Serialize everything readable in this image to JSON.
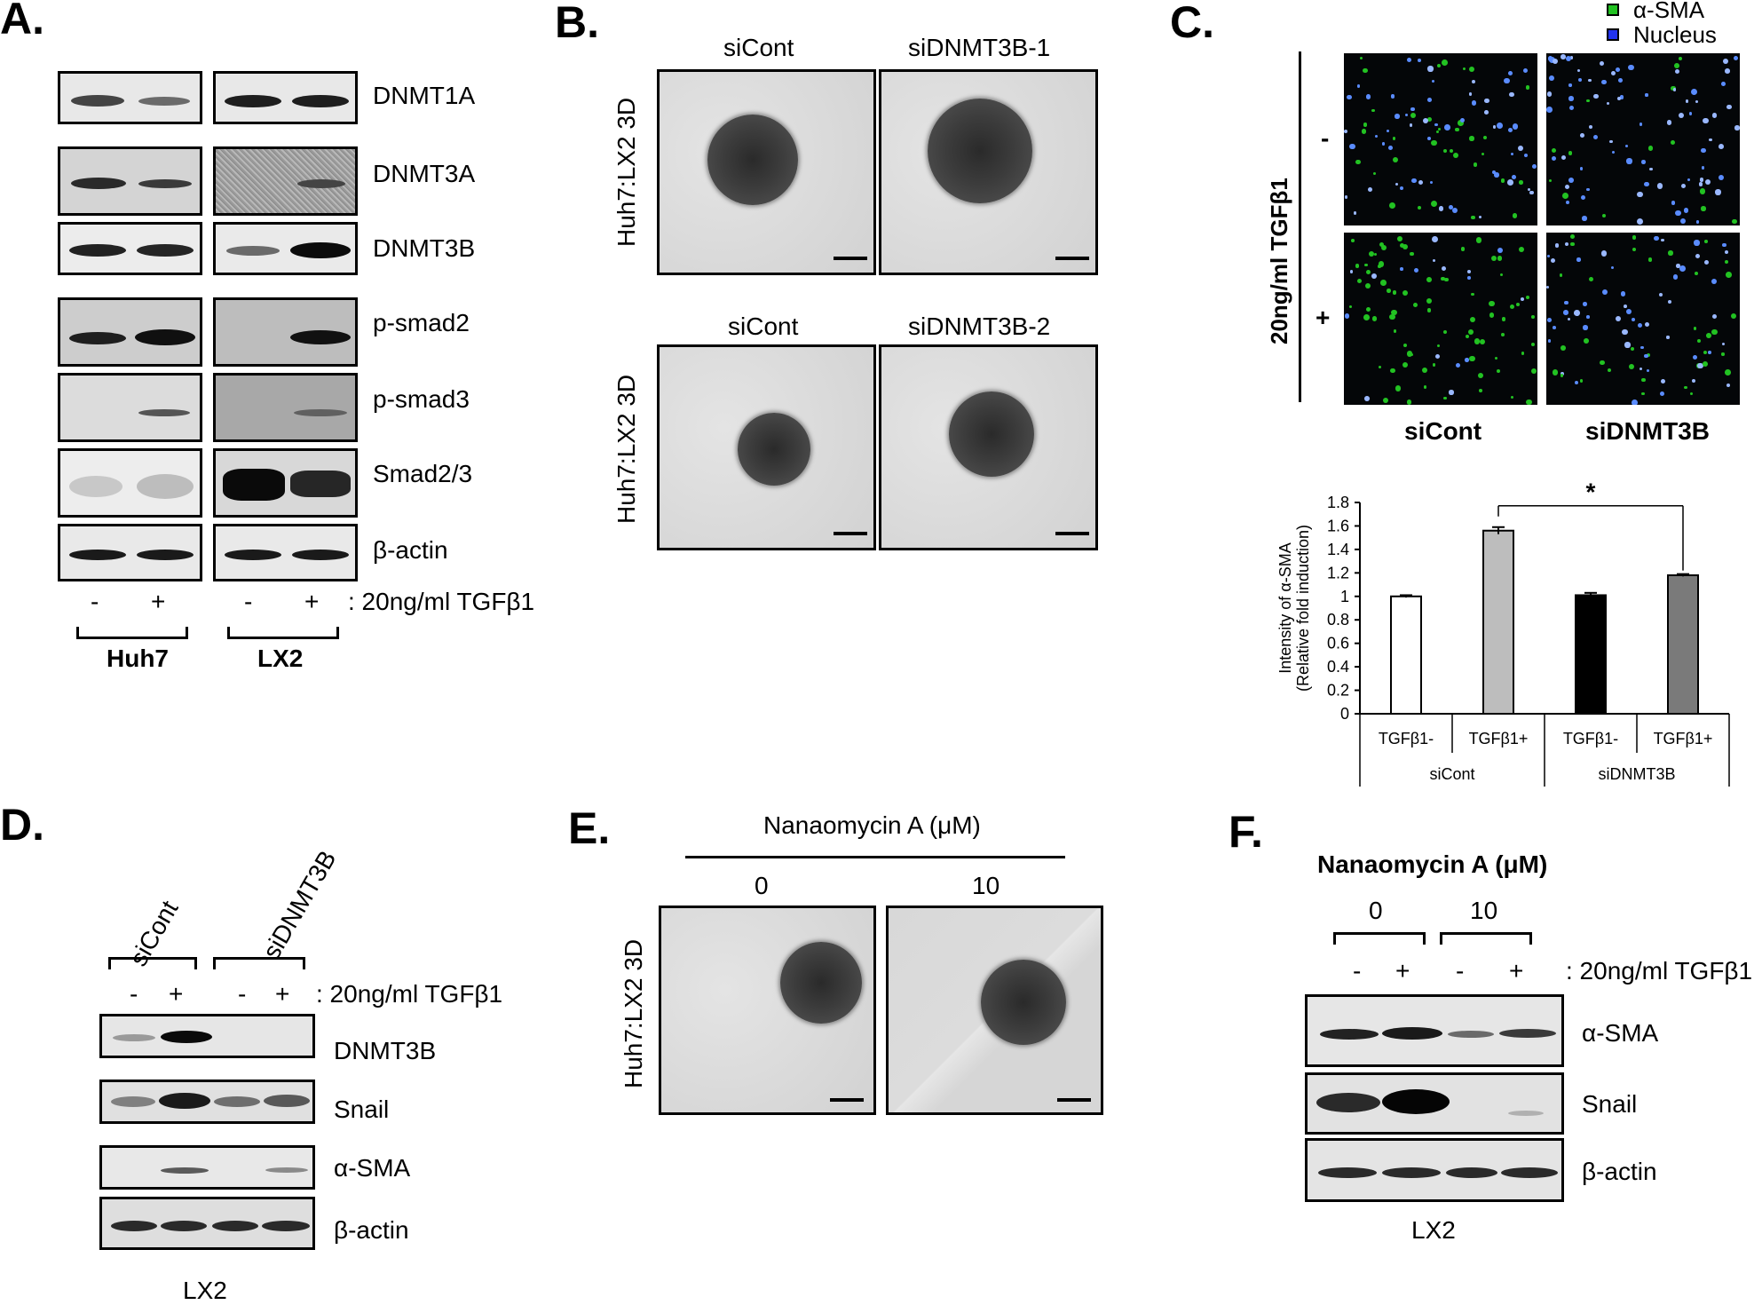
{
  "panelA": {
    "label": "A.",
    "rows": [
      "DNMT1A",
      "DNMT3A",
      "DNMT3B",
      "p-smad2",
      "p-smad3",
      "Smad2/3",
      "β-actin"
    ],
    "treat": [
      "-",
      "+",
      "-",
      "+"
    ],
    "treat_label": ": 20ng/ml TGFβ1",
    "groups": [
      "Huh7",
      "LX2"
    ]
  },
  "panelB": {
    "label": "B.",
    "row1_cols": [
      "siCont",
      "siDNMT3B-1"
    ],
    "row2_cols": [
      "siCont",
      "siDNMT3B-2"
    ],
    "side_label": "Huh7:LX2 3D"
  },
  "panelC": {
    "label": "C.",
    "legend": [
      "α-SMA",
      "Nucleus"
    ],
    "legend_colors": [
      "#22c222",
      "#2233ee"
    ],
    "side_label": "20ng/ml TGFβ1",
    "row_marks": [
      "-",
      "+"
    ],
    "col_labels": [
      "siCont",
      "siDNMT3B"
    ],
    "significance": "*"
  },
  "chart_data": {
    "type": "bar",
    "ylabel_line1": "Intensity of α-SMA",
    "ylabel_line2": "(Relative fold induction)",
    "ylim": [
      0,
      1.8
    ],
    "yticks": [
      "0",
      "0.2",
      "0.4",
      "0.6",
      "0.8",
      "1",
      "1.2",
      "1.4",
      "1.6",
      "1.8"
    ],
    "categories": [
      "TGFβ1-",
      "TGFβ1+",
      "TGFβ1-",
      "TGFβ1+"
    ],
    "groups": [
      "siCont",
      "siDNMT3B"
    ],
    "values": [
      1.0,
      1.56,
      1.01,
      1.18
    ],
    "errors": [
      0.01,
      0.03,
      0.02,
      0.01
    ],
    "colors": [
      "#ffffff",
      "#bdbdbd",
      "#000000",
      "#7a7a7a"
    ]
  },
  "panelD": {
    "label": "D.",
    "cols": [
      "siCont",
      "siDNMT3B"
    ],
    "treat": [
      "-",
      "+",
      "-",
      "+"
    ],
    "treat_label": ": 20ng/ml TGFβ1",
    "rows": [
      "DNMT3B",
      "Snail",
      "α-SMA",
      "β-actin"
    ],
    "cell": "LX2"
  },
  "panelE": {
    "label": "E.",
    "title": "Nanaomycin A (μM)",
    "cols": [
      "0",
      "10"
    ],
    "side_label": "Huh7:LX2 3D"
  },
  "panelF": {
    "label": "F.",
    "title": "Nanaomycin A (μM)",
    "cols": [
      "0",
      "10"
    ],
    "treat": [
      "-",
      "+",
      "-",
      "+"
    ],
    "treat_label": ": 20ng/ml TGFβ1",
    "rows": [
      "α-SMA",
      "Snail",
      "β-actin"
    ],
    "cell": "LX2"
  }
}
